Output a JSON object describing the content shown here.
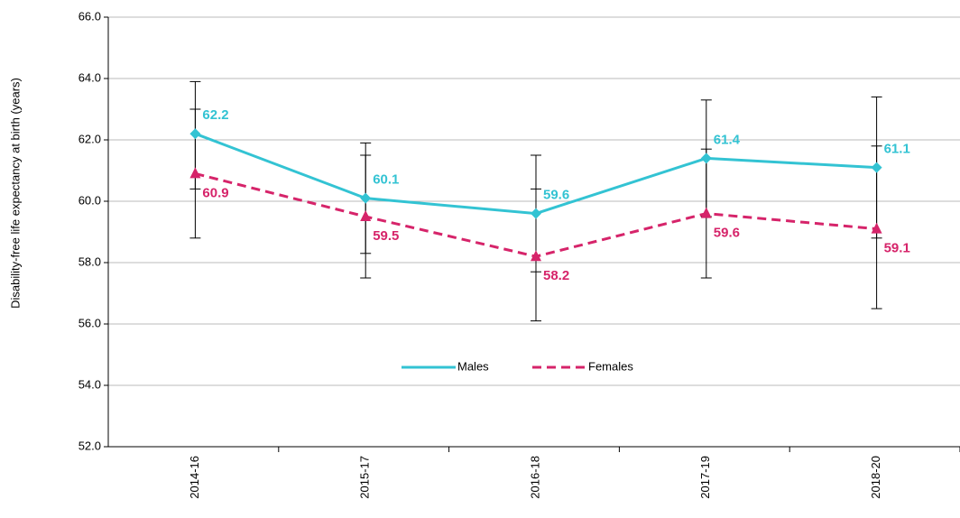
{
  "chart_data": {
    "type": "line",
    "y_label": "Disability-free life expectancy at birth (years)",
    "categories": [
      "2014-16",
      "2015-17",
      "2016-18",
      "2017-19",
      "2018-20"
    ],
    "series": [
      {
        "name": "Males",
        "color": "#33c3d3",
        "dash": false,
        "marker": "diamond",
        "values": [
          62.2,
          60.1,
          59.6,
          61.4,
          61.1
        ],
        "upper": [
          63.9,
          61.9,
          61.5,
          63.3,
          63.4
        ],
        "lower": [
          60.4,
          58.3,
          57.7,
          59.5,
          58.8
        ]
      },
      {
        "name": "Females",
        "color": "#d6246a",
        "dash": true,
        "marker": "triangle",
        "values": [
          60.9,
          59.5,
          58.2,
          59.6,
          59.1
        ],
        "upper": [
          63.0,
          61.5,
          60.4,
          61.7,
          61.8
        ],
        "lower": [
          58.8,
          57.5,
          56.1,
          57.5,
          56.5
        ]
      }
    ],
    "ylim": [
      52,
      66
    ],
    "yticks": [
      {
        "value": 52,
        "label": "52.0"
      },
      {
        "value": 54,
        "label": "54.0"
      },
      {
        "value": 56,
        "label": "56.0"
      },
      {
        "value": 58,
        "label": "58.0"
      },
      {
        "value": 60,
        "label": "60.0"
      },
      {
        "value": 62,
        "label": "62.0"
      },
      {
        "value": 64,
        "label": "64.0"
      },
      {
        "value": 66,
        "label": "66.0"
      }
    ],
    "grid": true,
    "legend": "center"
  }
}
